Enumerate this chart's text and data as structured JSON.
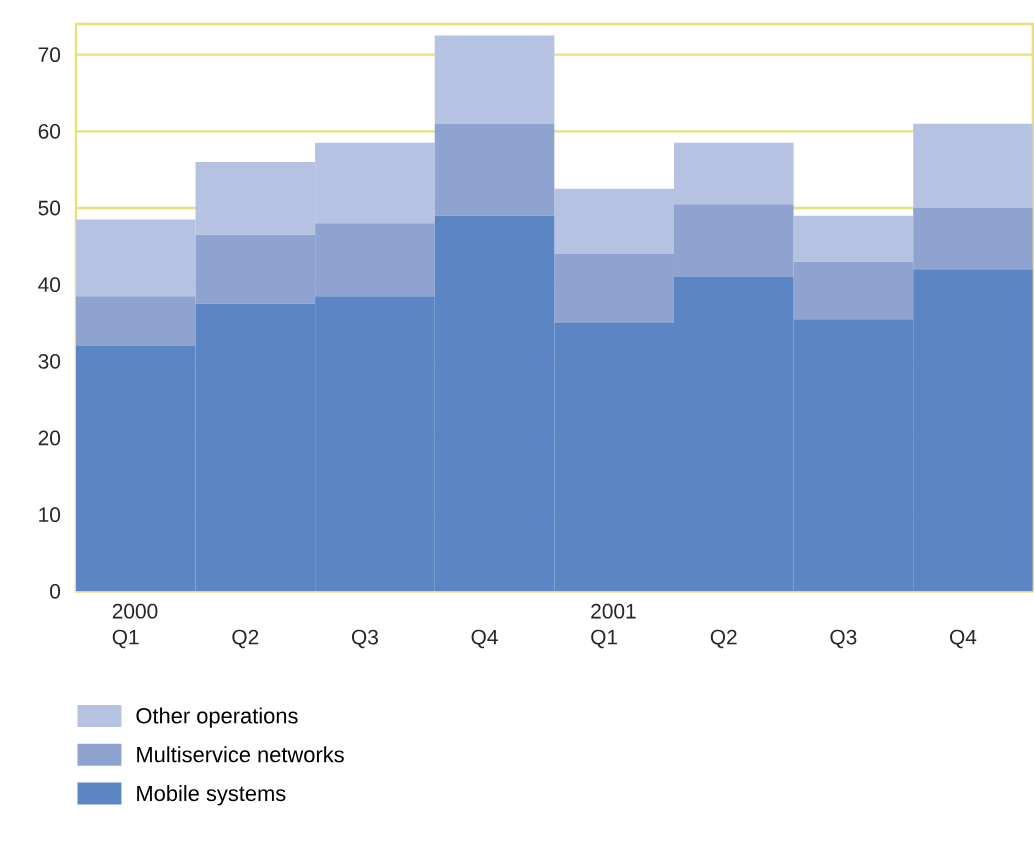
{
  "chart_data": {
    "type": "bar",
    "stacked": true,
    "categories": [
      "2000 Q1",
      "Q2",
      "Q3",
      "Q4",
      "2001 Q1",
      "Q2",
      "Q3",
      "Q4"
    ],
    "series": [
      {
        "name": "Mobile systems",
        "color": "#5b86c3",
        "values": [
          32,
          37.5,
          38.5,
          49,
          35,
          41,
          35.5,
          42
        ]
      },
      {
        "name": "Multiservice networks",
        "color": "#8fa3d1",
        "values": [
          6.5,
          9,
          9.5,
          12,
          9,
          9.5,
          7.5,
          8
        ]
      },
      {
        "name": "Other operations",
        "color": "#b6c2e2",
        "values": [
          10,
          9.5,
          10.5,
          11.5,
          8.5,
          8,
          6,
          11
        ]
      }
    ],
    "ylim": [
      0,
      74
    ],
    "yticks": [
      0,
      10,
      20,
      30,
      40,
      50,
      60,
      70
    ],
    "grid": "y",
    "legend": "bottom"
  }
}
